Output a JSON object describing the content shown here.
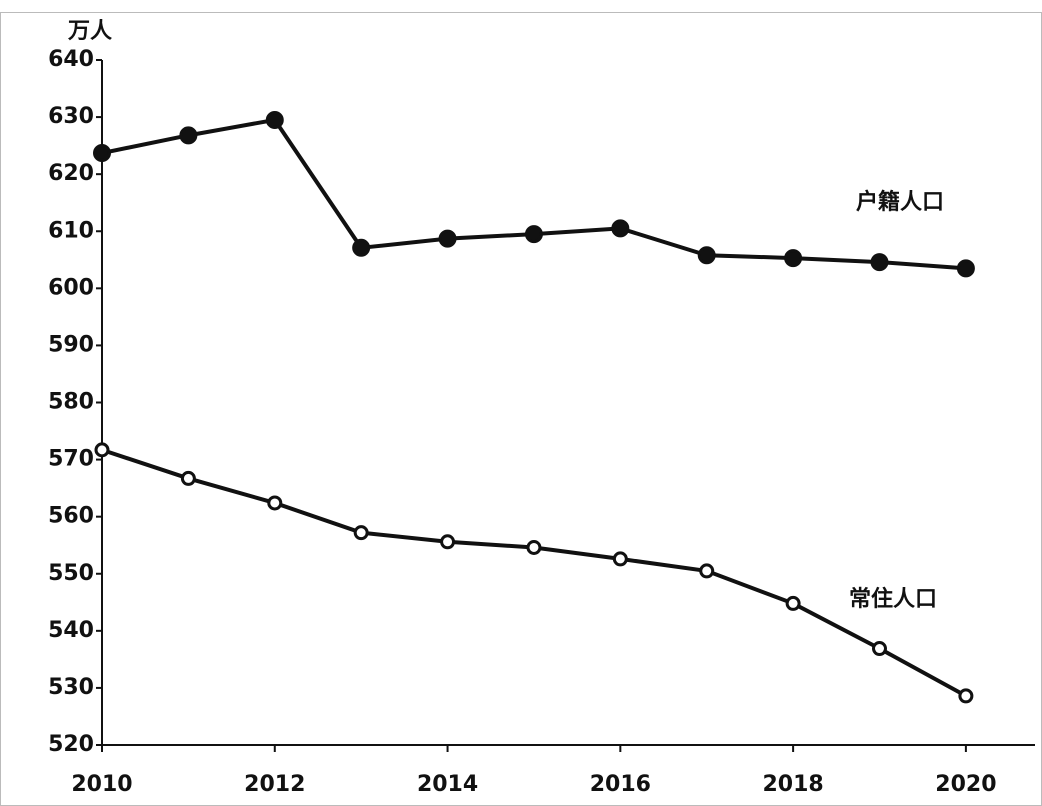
{
  "chart_data": {
    "type": "line",
    "y_label": "万人",
    "x": [
      2010,
      2011,
      2012,
      2013,
      2014,
      2015,
      2016,
      2017,
      2018,
      2019,
      2020
    ],
    "series": [
      {
        "name": "户籍人口",
        "color": "#111111",
        "marker": "filled",
        "values": [
          623.7,
          626.8,
          629.5,
          607.1,
          608.7,
          609.5,
          610.5,
          605.8,
          605.3,
          604.6,
          603.5
        ]
      },
      {
        "name": "常住人口",
        "color": "#111111",
        "marker": "open",
        "values": [
          571.7,
          566.7,
          562.4,
          557.2,
          555.6,
          554.6,
          552.6,
          550.5,
          544.8,
          536.9,
          528.6
        ]
      }
    ],
    "xlim": [
      2010,
      2020.8
    ],
    "xticks": [
      2010,
      2012,
      2014,
      2016,
      2018,
      2020
    ],
    "ylim": [
      520,
      640
    ],
    "yticks": [
      520,
      530,
      540,
      550,
      560,
      570,
      580,
      590,
      600,
      610,
      620,
      630,
      640
    ]
  }
}
